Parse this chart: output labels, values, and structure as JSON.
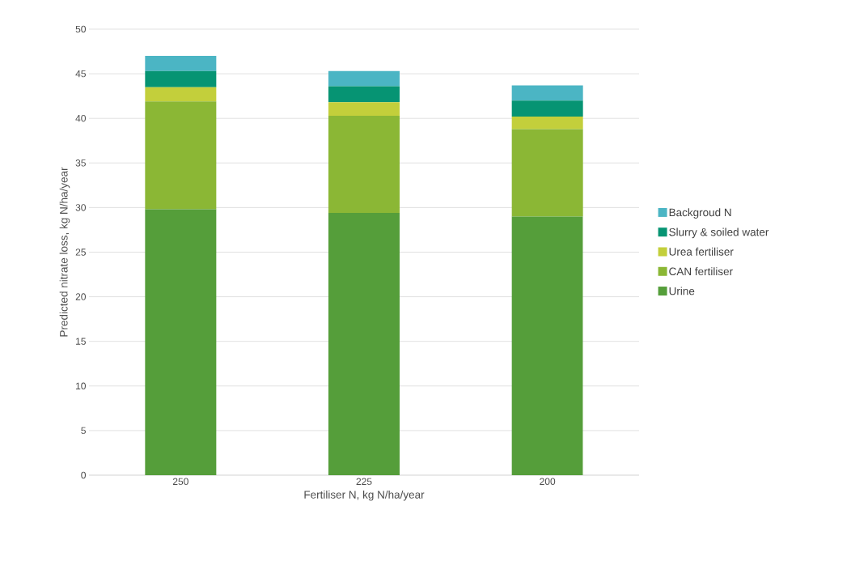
{
  "chart_data": {
    "type": "bar",
    "stacked": true,
    "xlabel": "Fertiliser N, kg N/ha/year",
    "ylabel": "Predicted nitrate loss, kg N/ha/year",
    "categories": [
      "250",
      "225",
      "200"
    ],
    "series": [
      {
        "name": "Urine",
        "color": "#559e3a",
        "values": [
          29.8,
          29.4,
          29.0
        ]
      },
      {
        "name": "CAN fertiliser",
        "color": "#8bb735",
        "values": [
          12.1,
          10.9,
          9.8
        ]
      },
      {
        "name": "Urea fertiliser",
        "color": "#c3cf3b",
        "values": [
          1.6,
          1.5,
          1.4
        ]
      },
      {
        "name": "Slurry & soiled water",
        "color": "#069473",
        "values": [
          1.8,
          1.8,
          1.8
        ]
      },
      {
        "name": "Backgroud N",
        "color": "#4bb5c4",
        "values": [
          1.7,
          1.7,
          1.7
        ]
      }
    ],
    "ylim": [
      0,
      50
    ],
    "yticks": [
      0,
      5,
      10,
      15,
      20,
      25,
      30,
      35,
      40,
      45,
      50
    ],
    "grid": "y",
    "legend": "right"
  }
}
